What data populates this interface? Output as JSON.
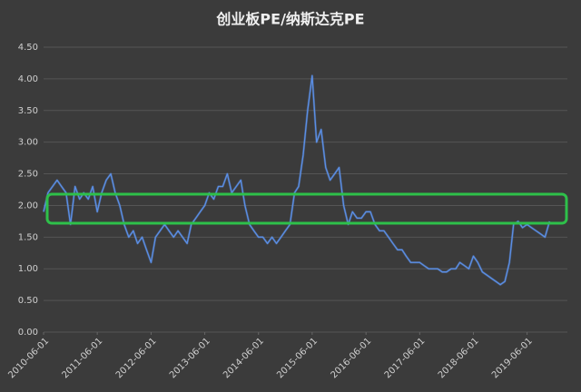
{
  "chart_data": {
    "type": "line",
    "title": "创业板PE/纳斯达克PE",
    "x": [
      "2010-06-01",
      "2010-07-01",
      "2010-08-01",
      "2010-09-01",
      "2010-10-01",
      "2010-11-01",
      "2010-12-01",
      "2011-01-01",
      "2011-02-01",
      "2011-03-01",
      "2011-04-01",
      "2011-05-01",
      "2011-06-01",
      "2011-07-01",
      "2011-08-01",
      "2011-09-01",
      "2011-10-01",
      "2011-11-01",
      "2011-12-01",
      "2012-01-01",
      "2012-02-01",
      "2012-03-01",
      "2012-04-01",
      "2012-05-01",
      "2012-06-01",
      "2012-07-01",
      "2012-08-01",
      "2012-09-01",
      "2012-10-01",
      "2012-11-01",
      "2012-12-01",
      "2013-01-01",
      "2013-02-01",
      "2013-03-01",
      "2013-04-01",
      "2013-05-01",
      "2013-06-01",
      "2013-07-01",
      "2013-08-01",
      "2013-09-01",
      "2013-10-01",
      "2013-11-01",
      "2013-12-01",
      "2014-01-01",
      "2014-02-01",
      "2014-03-01",
      "2014-04-01",
      "2014-05-01",
      "2014-06-01",
      "2014-07-01",
      "2014-08-01",
      "2014-09-01",
      "2014-10-01",
      "2014-11-01",
      "2014-12-01",
      "2015-01-01",
      "2015-02-01",
      "2015-03-01",
      "2015-04-01",
      "2015-05-01",
      "2015-06-01",
      "2015-07-01",
      "2015-08-01",
      "2015-09-01",
      "2015-10-01",
      "2015-11-01",
      "2015-12-01",
      "2016-01-01",
      "2016-02-01",
      "2016-03-01",
      "2016-04-01",
      "2016-05-01",
      "2016-06-01",
      "2016-07-01",
      "2016-08-01",
      "2016-09-01",
      "2016-10-01",
      "2016-11-01",
      "2016-12-01",
      "2017-01-01",
      "2017-02-01",
      "2017-03-01",
      "2017-04-01",
      "2017-05-01",
      "2017-06-01",
      "2017-07-01",
      "2017-08-01",
      "2017-09-01",
      "2017-10-01",
      "2017-11-01",
      "2017-12-01",
      "2018-01-01",
      "2018-02-01",
      "2018-03-01",
      "2018-04-01",
      "2018-05-01",
      "2018-06-01",
      "2018-07-01",
      "2018-08-01",
      "2018-09-01",
      "2018-10-01",
      "2018-11-01",
      "2018-12-01",
      "2019-01-01",
      "2019-02-01",
      "2019-03-01",
      "2019-04-01",
      "2019-05-01",
      "2019-06-01",
      "2019-07-01",
      "2019-08-01",
      "2019-09-01",
      "2019-10-01",
      "2019-11-01"
    ],
    "series": [
      {
        "color": "#5b8fe6",
        "values": [
          1.9,
          2.2,
          2.3,
          2.4,
          2.3,
          2.2,
          1.7,
          2.3,
          2.1,
          2.2,
          2.1,
          2.3,
          1.9,
          2.2,
          2.4,
          2.5,
          2.2,
          2.0,
          1.7,
          1.5,
          1.6,
          1.4,
          1.5,
          1.3,
          1.1,
          1.5,
          1.6,
          1.7,
          1.6,
          1.5,
          1.6,
          1.5,
          1.4,
          1.7,
          1.8,
          1.9,
          2.0,
          2.2,
          2.1,
          2.3,
          2.3,
          2.5,
          2.2,
          2.3,
          2.4,
          2.0,
          1.7,
          1.6,
          1.5,
          1.5,
          1.4,
          1.5,
          1.4,
          1.5,
          1.6,
          1.7,
          2.2,
          2.3,
          2.8,
          3.5,
          4.05,
          3.0,
          3.2,
          2.6,
          2.4,
          2.5,
          2.6,
          2.0,
          1.7,
          1.9,
          1.8,
          1.8,
          1.9,
          1.9,
          1.7,
          1.6,
          1.6,
          1.5,
          1.4,
          1.3,
          1.3,
          1.2,
          1.1,
          1.1,
          1.1,
          1.05,
          1.0,
          1.0,
          1.0,
          0.95,
          0.95,
          1.0,
          1.0,
          1.1,
          1.05,
          1.0,
          1.2,
          1.1,
          0.95,
          0.9,
          0.85,
          0.8,
          0.75,
          0.8,
          1.1,
          1.7,
          1.75,
          1.65,
          1.7,
          1.65,
          1.6,
          1.55,
          1.5,
          1.75
        ]
      }
    ],
    "xlim": [
      "2010-06-01",
      "2020-03-01"
    ],
    "xticks": [
      "2010-06-01",
      "2011-06-01",
      "2012-06-01",
      "2013-06-01",
      "2014-06-01",
      "2015-06-01",
      "2016-06-01",
      "2017-06-01",
      "2018-06-01",
      "2019-06-01"
    ],
    "ylim": [
      0,
      4.5
    ],
    "yticks": [
      {
        "value": 0,
        "label": "0.00"
      },
      {
        "value": 0.5,
        "label": "0.50"
      },
      {
        "value": 1,
        "label": "1.00"
      },
      {
        "value": 1.5,
        "label": "1.50"
      },
      {
        "value": 2,
        "label": "2.00"
      },
      {
        "value": 2.5,
        "label": "2.50"
      },
      {
        "value": 3,
        "label": "3.00"
      },
      {
        "value": 3.5,
        "label": "3.50"
      },
      {
        "value": 4,
        "label": "4.00"
      },
      {
        "value": 4.5,
        "label": "4.50"
      }
    ],
    "grid": true
  }
}
